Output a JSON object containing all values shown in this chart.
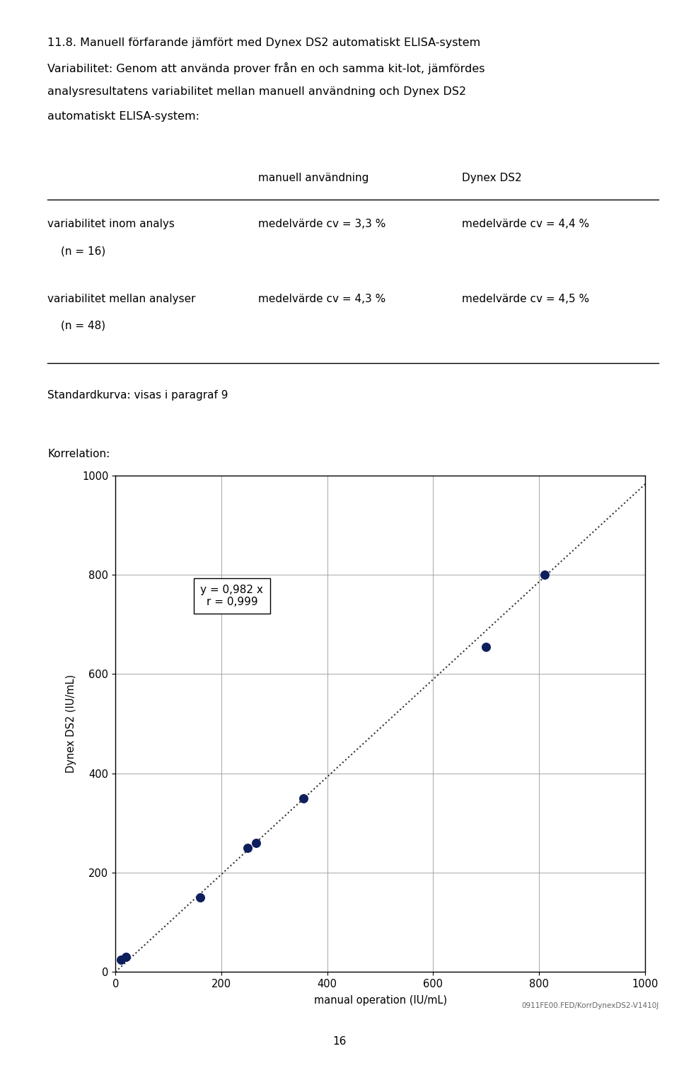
{
  "title_line1": "11.8. Manuell förfarande jämfört med Dynex DS2 automatiskt ELISA-system",
  "title_line2": "Variabilitet: Genom att använda prover från en och samma kit-lot, jämfördes",
  "title_line3": "analysresultatens variabilitet mellan manuell användning och Dynex DS2",
  "title_line4": "automatiskt ELISA-system:",
  "col_header_1": "manuell användning",
  "col_header_2": "Dynex DS2",
  "row1_label1": "variabilitet inom analys",
  "row1_label2": "    (n = 16)",
  "row1_col1": "medelvärde cv = 3,3 %",
  "row1_col2": "medelvärde cv = 4,4 %",
  "row2_label1": "variabilitet mellan analyser",
  "row2_label2": "    (n = 48)",
  "row2_col1": "medelvärde cv = 4,3 %",
  "row2_col2": "medelvärde cv = 4,5 %",
  "std_label": "Standardkurva: visas i paragraf 9",
  "corr_label": "Korrelation:",
  "scatter_x": [
    10,
    20,
    160,
    250,
    265,
    355,
    700,
    810
  ],
  "scatter_y": [
    25,
    30,
    150,
    250,
    260,
    350,
    655,
    800
  ],
  "line_x": [
    0,
    1020
  ],
  "equation_text": "y = 0,982 x\nr = 0,999",
  "xlabel": "manual operation (IU/mL)",
  "ylabel": "Dynex DS2 (IU/mL)",
  "xlim": [
    0,
    1000
  ],
  "ylim": [
    0,
    1000
  ],
  "xticks": [
    0,
    200,
    400,
    600,
    800,
    1000
  ],
  "yticks": [
    0,
    200,
    400,
    600,
    800,
    1000
  ],
  "dot_color": "#0d1f5c",
  "dot_size": 70,
  "line_color": "#333333",
  "grid_color": "#999999",
  "footnote": "0911FE00.FED/KorrDynexDS2-V1410J",
  "page_num": "16",
  "background_color": "#ffffff",
  "font_size_title": 11.5,
  "font_size_table": 11.0,
  "font_size_axis": 10.5,
  "font_size_footnote": 7.5,
  "font_size_page": 11.0
}
